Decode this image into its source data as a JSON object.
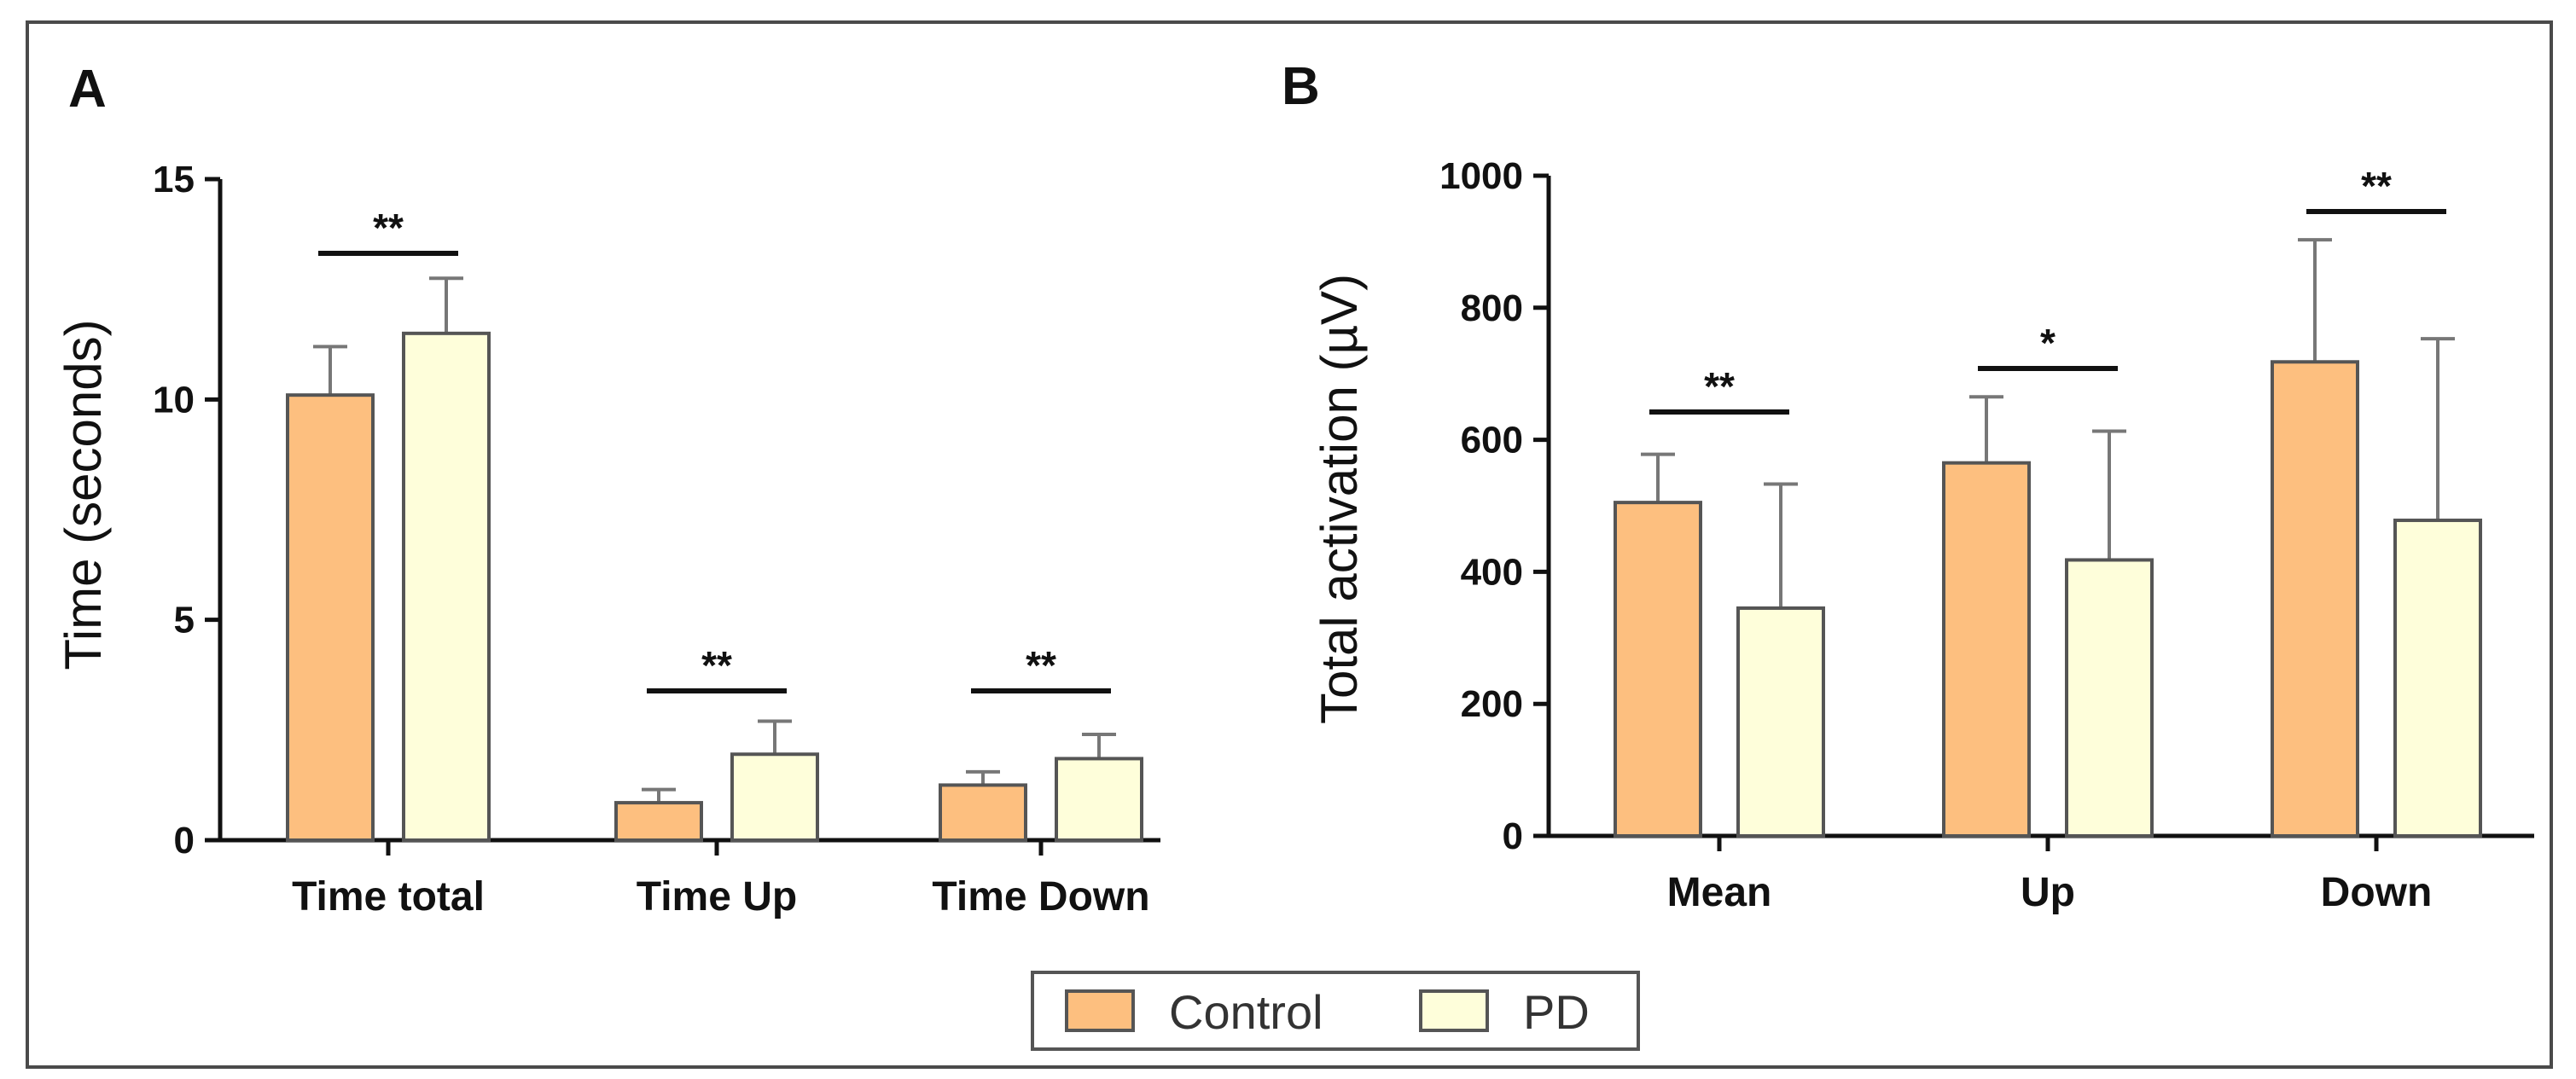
{
  "colors": {
    "control": "#FDBF7F",
    "pd": "#FEFEDA"
  },
  "legend": {
    "items": [
      {
        "key": "control",
        "label": "Control"
      },
      {
        "key": "pd",
        "label": "PD"
      }
    ]
  },
  "chart_data": [
    {
      "type": "bar",
      "panel_label": "A",
      "ylabel": "Time (seconds)",
      "xlabel": "",
      "ylim": [
        0,
        15
      ],
      "yticks": [
        0,
        5,
        10,
        15
      ],
      "categories": [
        "Time total",
        "Time Up",
        "Time Down"
      ],
      "series": [
        {
          "name": "Control",
          "key": "control",
          "values": [
            10.1,
            0.85,
            1.25
          ],
          "errors": [
            1.1,
            0.3,
            0.3
          ]
        },
        {
          "name": "PD",
          "key": "pd",
          "values": [
            11.5,
            1.95,
            1.85
          ],
          "errors": [
            1.25,
            0.75,
            0.55
          ]
        }
      ],
      "significance": [
        "**",
        "**",
        "**"
      ]
    },
    {
      "type": "bar",
      "panel_label": "B",
      "ylabel": "Total activation (µV)",
      "xlabel": "",
      "ylim": [
        0,
        1000
      ],
      "yticks": [
        0,
        200,
        400,
        600,
        800,
        1000
      ],
      "categories": [
        "Mean",
        "Up",
        "Down"
      ],
      "series": [
        {
          "name": "Control",
          "key": "control",
          "values": [
            505,
            565,
            718
          ],
          "errors": [
            73,
            100,
            185
          ]
        },
        {
          "name": "PD",
          "key": "pd",
          "values": [
            345,
            418,
            478
          ],
          "errors": [
            188,
            195,
            275
          ]
        }
      ],
      "significance": [
        "**",
        "*",
        "**"
      ]
    }
  ]
}
